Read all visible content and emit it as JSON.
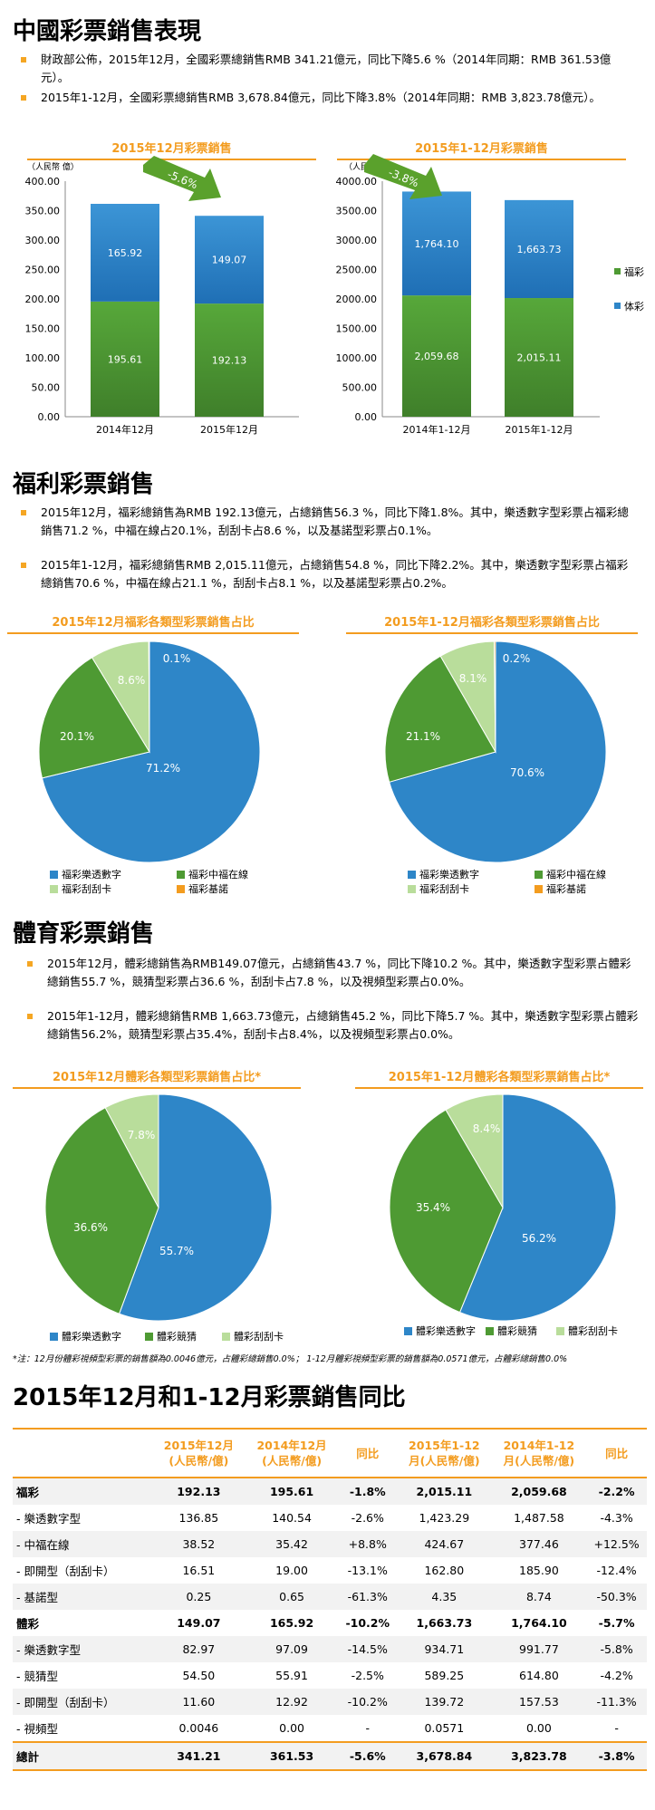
{
  "sections": {
    "s1_title": "中國彩票銷售表現",
    "s1_b1": "財政部公佈，2015年12月，全國彩票總銷售RMB 341.21億元，同比下降5.6 %（2014年同期：RMB 361.53億元）。",
    "s1_b2": "2015年1-12月，全國彩票總銷售RMB 3,678.84億元，同比下降3.8%（2014年同期：RMB 3,823.78億元）。",
    "s2_title": "福利彩票銷售",
    "s2_b1": "2015年12月，福彩總銷售為RMB 192.13億元，占總銷售56.3 %，同比下降1.8%。其中，樂透數字型彩票占福彩總銷售71.2 %，中福在線占20.1%，刮刮卡占8.6 %，以及基諾型彩票占0.1%。",
    "s2_b2": "2015年1-12月，福彩總銷售RMB 2,015.11億元，占總銷售54.8 %，同比下降2.2%。其中，樂透數字型彩票占福彩總銷售70.6 %，中福在線占21.1 %，刮刮卡占8.1 %，以及基諾型彩票占0.2%。",
    "s3_title": "體育彩票銷售",
    "s3_b1": "2015年12月，體彩總銷售為RMB149.07億元，占總銷售43.7 %，同比下降10.2 %。其中，樂透數字型彩票占體彩總銷售55.7 %，競猜型彩票占36.6 %，刮刮卡占7.8 %，以及視頻型彩票占0.0%。",
    "s3_b2": "2015年1-12月，體彩總銷售RMB 1,663.73億元，占總銷售45.2 %，同比下降5.7 %。其中，樂透數字型彩票占體彩總銷售56.2%，競猜型彩票占35.4%，刮刮卡占8.4%，以及視頻型彩票占0.0%。",
    "note": "*注：12月份體彩視頻型彩票的銷售額為0.0046億元，占體彩總銷售0.0%；  1-12月體彩視頻型彩票的銷售額為0.0571億元，占體彩總銷售0.0%",
    "s4_title": "2015年12月和1-12月彩票銷售同比"
  },
  "colors": {
    "fucai": "#4e9a33",
    "ticai": "#2e86c8",
    "accent": "#f39c1f",
    "arrow": "#5aa12c",
    "scratch": "#b9dd9b",
    "keno": "#f39c1f"
  },
  "chart_data": [
    {
      "type": "bar",
      "title": "2015年12月彩票銷售",
      "ylabel": "（人民幣 億）",
      "categories": [
        "2014年12月",
        "2015年12月"
      ],
      "series": [
        {
          "name": "福彩",
          "values": [
            195.61,
            192.13
          ],
          "labels": [
            "195.61",
            "192.13"
          ]
        },
        {
          "name": "体彩",
          "values": [
            165.92,
            149.07
          ],
          "labels": [
            "165.92",
            "149.07"
          ]
        }
      ],
      "ylim": [
        0,
        400
      ],
      "yticks": [
        "0.00",
        "50.00",
        "100.00",
        "150.00",
        "200.00",
        "250.00",
        "300.00",
        "350.00",
        "400.00"
      ],
      "annotation": "-5.6%"
    },
    {
      "type": "bar",
      "title": "2015年1-12月彩票銷售",
      "ylabel": "（人民幣 億）",
      "categories": [
        "2014年1-12月",
        "2015年1-12月"
      ],
      "series": [
        {
          "name": "福彩",
          "values": [
            2059.68,
            2015.11
          ],
          "labels": [
            "2,059.68",
            "2,015.11"
          ]
        },
        {
          "name": "体彩",
          "values": [
            1764.1,
            1663.73
          ],
          "labels": [
            "1,764.10",
            "1,663.73"
          ]
        }
      ],
      "ylim": [
        0,
        4000
      ],
      "yticks": [
        "0.00",
        "500.00",
        "1000.00",
        "1500.00",
        "2000.00",
        "2500.00",
        "3000.00",
        "3500.00",
        "4000.00"
      ],
      "annotation": "-3.8%",
      "legend": [
        "福彩",
        "体彩"
      ]
    },
    {
      "type": "pie",
      "title": "2015年12月福彩各類型彩票銷售占比",
      "labels": [
        "福彩樂透數字",
        "福彩中福在線",
        "福彩刮刮卡",
        "福彩基諾"
      ],
      "values": [
        71.2,
        20.1,
        8.6,
        0.1
      ],
      "value_labels": [
        "71.2%",
        "20.1%",
        "8.6%",
        "0.1%"
      ]
    },
    {
      "type": "pie",
      "title": "2015年1-12月福彩各類型彩票銷售占比",
      "labels": [
        "福彩樂透數字",
        "福彩中福在線",
        "福彩刮刮卡",
        "福彩基諾"
      ],
      "values": [
        70.6,
        21.1,
        8.1,
        0.2
      ],
      "value_labels": [
        "70.6%",
        "21.1%",
        "8.1%",
        "0.2%"
      ]
    },
    {
      "type": "pie",
      "title": "2015年12月體彩各類型彩票銷售占比*",
      "labels": [
        "體彩樂透數字",
        "體彩競猜",
        "體彩刮刮卡"
      ],
      "values": [
        55.7,
        36.6,
        7.8
      ],
      "value_labels": [
        "55.7%",
        "36.6%",
        "7.8%"
      ]
    },
    {
      "type": "pie",
      "title": "2015年1-12月體彩各類型彩票銷售占比*",
      "labels": [
        "體彩樂透數字",
        "體彩競猜",
        "體彩刮刮卡"
      ],
      "values": [
        56.2,
        35.4,
        8.4
      ],
      "value_labels": [
        "56.2%",
        "35.4%",
        "8.4%"
      ]
    },
    {
      "type": "table",
      "headers": [
        "",
        "2015年12月\n(人民幣/億)",
        "2014年12月\n(人民幣/億)",
        "同比",
        "2015年1-12\n月(人民幣/億)",
        "2014年1-12\n月(人民幣/億)",
        "同比"
      ],
      "rows": [
        [
          "福彩",
          "192.13",
          "195.61",
          "-1.8%",
          "2,015.11",
          "2,059.68",
          "-2.2%"
        ],
        [
          "- 樂透數字型",
          "136.85",
          "140.54",
          "-2.6%",
          "1,423.29",
          "1,487.58",
          "-4.3%"
        ],
        [
          "- 中福在線",
          "38.52",
          "35.42",
          "+8.8%",
          "424.67",
          "377.46",
          "+12.5%"
        ],
        [
          "- 即開型（刮刮卡）",
          "16.51",
          "19.00",
          "-13.1%",
          "162.80",
          "185.90",
          "-12.4%"
        ],
        [
          "- 基諾型",
          "0.25",
          "0.65",
          "-61.3%",
          "4.35",
          "8.74",
          "-50.3%"
        ],
        [
          "體彩",
          "149.07",
          "165.92",
          "-10.2%",
          "1,663.73",
          "1,764.10",
          "-5.7%"
        ],
        [
          "- 樂透數字型",
          "82.97",
          "97.09",
          "-14.5%",
          "934.71",
          "991.77",
          "-5.8%"
        ],
        [
          "- 競猜型",
          "54.50",
          "55.91",
          "-2.5%",
          "589.25",
          "614.80",
          "-4.2%"
        ],
        [
          "- 即開型（刮刮卡）",
          "11.60",
          "12.92",
          "-10.2%",
          "139.72",
          "157.53",
          "-11.3%"
        ],
        [
          "- 視頻型",
          "0.0046",
          "0.00",
          "-",
          "0.0571",
          "0.00",
          "-"
        ],
        [
          "總計",
          "341.21",
          "361.53",
          "-5.6%",
          "3,678.84",
          "3,823.78",
          "-3.8%"
        ]
      ]
    }
  ]
}
